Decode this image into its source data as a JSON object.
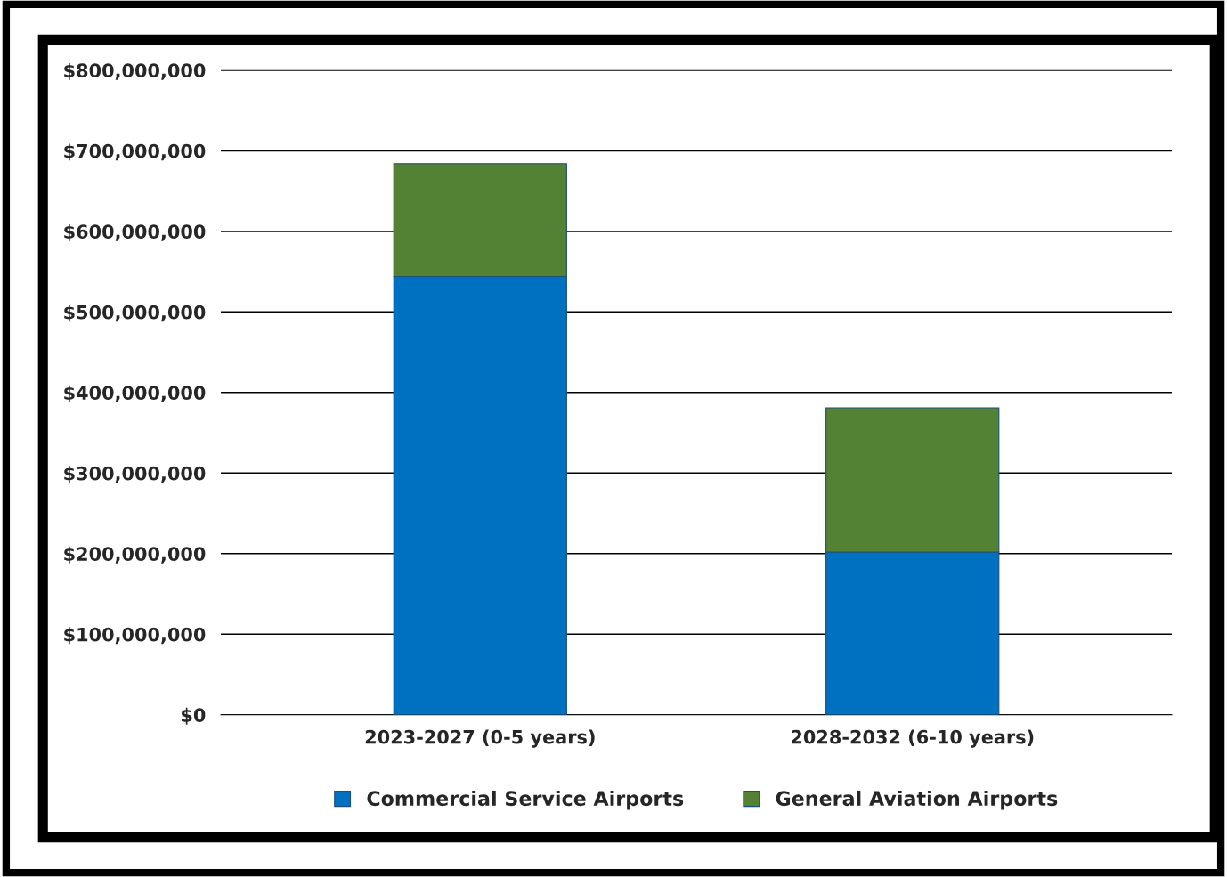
{
  "chart_data": {
    "type": "bar",
    "stacked": true,
    "categories": [
      "2023-2027 (0-5 years)",
      "2028-2032 (6-10 years)"
    ],
    "series": [
      {
        "name": "Commercial Service Airports",
        "color": "#0070c0",
        "values": [
          544000000,
          202000000
        ]
      },
      {
        "name": "General Aviation Airports",
        "color": "#548235",
        "values": [
          140000000,
          179000000
        ]
      }
    ],
    "ylim": [
      0,
      800000000
    ],
    "yticks": [
      {
        "value": 0,
        "label": "$0"
      },
      {
        "value": 100000000,
        "label": "$100,000,000"
      },
      {
        "value": 200000000,
        "label": "$200,000,000"
      },
      {
        "value": 300000000,
        "label": "$300,000,000"
      },
      {
        "value": 400000000,
        "label": "$400,000,000"
      },
      {
        "value": 500000000,
        "label": "$500,000,000"
      },
      {
        "value": 600000000,
        "label": "$600,000,000"
      },
      {
        "value": 700000000,
        "label": "$700,000,000"
      },
      {
        "value": 800000000,
        "label": "$800,000,000"
      }
    ],
    "grid": "y",
    "legend": "bottom"
  }
}
